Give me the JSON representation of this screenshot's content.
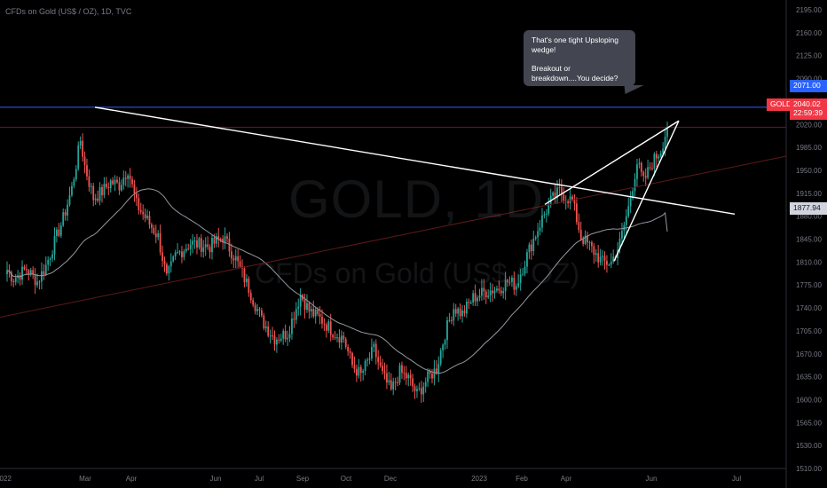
{
  "header": {
    "symbol_line": "CFDs on Gold (US$ / OZ), 1D, TVC"
  },
  "watermark": {
    "symbol": "GOLD, 1D",
    "description": "CFDs on Gold (US$ / OZ)"
  },
  "callout": {
    "line1": "That's one tight Upsloping wedge!",
    "line2": "Breakout or breakdown....You decide?"
  },
  "price_tags": {
    "resistance": "2071.00",
    "symbol": "GOLD",
    "last_price": "2040.02",
    "countdown": "22:59:39",
    "ma_value": "1877.94"
  },
  "colors": {
    "up": "#26a69a",
    "down": "#ef5350",
    "resistance_line": "#2962ff",
    "price_line": "#f23645",
    "trendline": "#ffffff",
    "moving_average": "#9598a1",
    "background": "#000000"
  },
  "chart_data": {
    "type": "candlestick",
    "title": "CFDs on Gold (US$ / OZ), 1D, TVC",
    "ylim": [
      1510,
      2210
    ],
    "y_ticks": [
      "2195.00",
      "2160.00",
      "2125.00",
      "2090.00",
      "2055.00",
      "2020.00",
      "1985.00",
      "1950.00",
      "1915.00",
      "1880.00",
      "1845.00",
      "1810.00",
      "1775.00",
      "1740.00",
      "1705.00",
      "1670.00",
      "1635.00",
      "1600.00",
      "1565.00",
      "1530.00",
      "1510.00"
    ],
    "x_ticks": [
      "2022",
      "Mar",
      "Apr",
      "Jun",
      "Jul",
      "Sep",
      "Oct",
      "Dec",
      "2023",
      "Feb",
      "Apr",
      "Jun",
      "Jul"
    ],
    "close_anchors": [
      [
        0,
        1818
      ],
      [
        3,
        1805
      ],
      [
        9,
        1820
      ],
      [
        14,
        1800
      ],
      [
        18,
        1825
      ],
      [
        26,
        1898
      ],
      [
        30,
        1945
      ],
      [
        34,
        2020
      ],
      [
        36,
        1980
      ],
      [
        40,
        1930
      ],
      [
        44,
        1940
      ],
      [
        48,
        1955
      ],
      [
        52,
        1950
      ],
      [
        56,
        1975
      ],
      [
        60,
        1920
      ],
      [
        64,
        1900
      ],
      [
        70,
        1870
      ],
      [
        74,
        1805
      ],
      [
        78,
        1840
      ],
      [
        85,
        1860
      ],
      [
        94,
        1855
      ],
      [
        100,
        1870
      ],
      [
        106,
        1835
      ],
      [
        112,
        1790
      ],
      [
        118,
        1740
      ],
      [
        124,
        1712
      ],
      [
        130,
        1720
      ],
      [
        136,
        1780
      ],
      [
        140,
        1755
      ],
      [
        146,
        1740
      ],
      [
        152,
        1720
      ],
      [
        156,
        1712
      ],
      [
        160,
        1670
      ],
      [
        164,
        1655
      ],
      [
        170,
        1695
      ],
      [
        174,
        1655
      ],
      [
        178,
        1630
      ],
      [
        182,
        1660
      ],
      [
        186,
        1650
      ],
      [
        190,
        1625
      ],
      [
        195,
        1650
      ],
      [
        199,
        1665
      ],
      [
        203,
        1720
      ],
      [
        207,
        1760
      ],
      [
        211,
        1750
      ],
      [
        216,
        1775
      ],
      [
        222,
        1785
      ],
      [
        228,
        1790
      ],
      [
        232,
        1800
      ],
      [
        236,
        1795
      ],
      [
        242,
        1850
      ],
      [
        248,
        1898
      ],
      [
        252,
        1925
      ],
      [
        256,
        1940
      ],
      [
        262,
        1925
      ],
      [
        266,
        1870
      ],
      [
        270,
        1855
      ],
      [
        276,
        1830
      ],
      [
        280,
        1830
      ],
      [
        284,
        1860
      ],
      [
        288,
        1915
      ],
      [
        292,
        1985
      ],
      [
        295,
        1955
      ],
      [
        299,
        1985
      ],
      [
        303,
        2005
      ],
      [
        306,
        2040
      ]
    ],
    "support_resistance": 2071.0,
    "last_price": 2040.02,
    "moving_average_last": 1877.94,
    "annotations": [
      "That's one tight Upsloping wedge!",
      "Breakout or breakdown....You decide?"
    ]
  }
}
